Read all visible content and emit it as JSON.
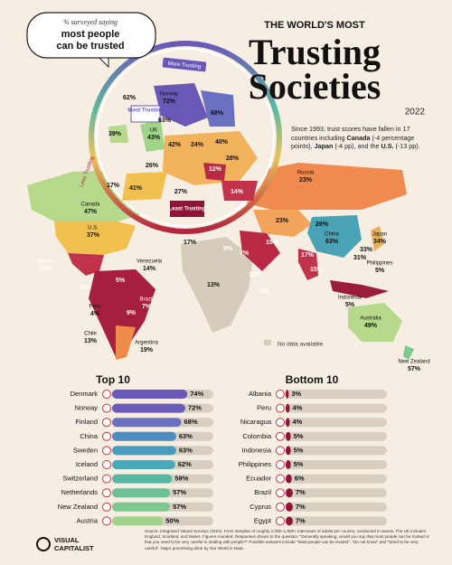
{
  "header": {
    "kicker": "THE WORLD'S MOST",
    "title_line1": "Trusting",
    "title_line2": "Societies",
    "year": "2022"
  },
  "bubble": {
    "line1": "% surveyed saying",
    "line2": "most people",
    "line3": "can be trusted"
  },
  "scale": {
    "more": "More Trusting",
    "less": "Less Trusting",
    "most": "Most Trusting",
    "least": "Least Trusting"
  },
  "note": {
    "parts": [
      "Since 1993, trust scores have fallen in 17 countries including ",
      "Canada",
      " (-4 percentage points), ",
      "Japan",
      " (-4 pp), and the ",
      "U.S.",
      " (-13 pp)."
    ]
  },
  "legend": {
    "no_data": "No data available"
  },
  "map_labels": [
    {
      "name": "Norway",
      "value": "72%"
    },
    {
      "value": "68%"
    },
    {
      "value": "63%"
    },
    {
      "value": "62%"
    },
    {
      "value": "39%"
    },
    {
      "name": "UK",
      "value": "43%"
    },
    {
      "value": "42%"
    },
    {
      "value": "24%"
    },
    {
      "value": "40%"
    },
    {
      "value": "26%"
    },
    {
      "value": "28%"
    },
    {
      "value": "12%"
    },
    {
      "value": "17%"
    },
    {
      "value": "41%"
    },
    {
      "value": "27%"
    },
    {
      "value": "14%"
    },
    {
      "name": "Russia",
      "value": "23%"
    },
    {
      "value": "23%"
    },
    {
      "value": "26%"
    },
    {
      "name": "China",
      "value": "63%"
    },
    {
      "name": "Japan",
      "value": "34%"
    },
    {
      "value": "33%"
    },
    {
      "value": "31%"
    },
    {
      "name": "Canada",
      "value": "47%"
    },
    {
      "name": "U.S.",
      "value": "37%"
    },
    {
      "name": "Mexico",
      "value": "10%"
    },
    {
      "name": "Venezuela",
      "value": "14%"
    },
    {
      "value": "6%"
    },
    {
      "value": "5%"
    },
    {
      "name": "Peru",
      "value": "4%"
    },
    {
      "name": "Brazil",
      "value": "7%"
    },
    {
      "value": "9%"
    },
    {
      "name": "Chile",
      "value": "13%"
    },
    {
      "name": "Argentina",
      "value": "19%"
    },
    {
      "value": "17%"
    },
    {
      "value": "9%"
    },
    {
      "value": "7%"
    },
    {
      "value": "15%"
    },
    {
      "value": "12%"
    },
    {
      "value": "13%"
    },
    {
      "value": "9%"
    },
    {
      "value": "17%"
    },
    {
      "value": "15%"
    },
    {
      "name": "Philippines",
      "value": "5%"
    },
    {
      "name": "Indonesia",
      "value": "5%"
    },
    {
      "name": "Australia",
      "value": "49%"
    },
    {
      "name": "New Zealand",
      "value": "57%"
    }
  ],
  "chart_data": [
    {
      "type": "bar",
      "orientation": "horizontal",
      "title": "Top 10",
      "categories": [
        "Denmark",
        "Norway",
        "Finland",
        "China",
        "Sweden",
        "Iceland",
        "Switzerland",
        "Netherlands",
        "New Zealand",
        "Austria"
      ],
      "values": [
        74,
        72,
        68,
        63,
        63,
        62,
        59,
        57,
        57,
        50
      ],
      "value_labels": [
        "74%",
        "72%",
        "68%",
        "63%",
        "63%",
        "62%",
        "59%",
        "57%",
        "57%",
        "50%"
      ],
      "colors": [
        "#6a58b6",
        "#6a5cb9",
        "#6a6fc0",
        "#4c8cc0",
        "#4a9cbe",
        "#4aa9b8",
        "#58b7a2",
        "#6bc197",
        "#7ec890",
        "#9fd48a"
      ],
      "xlim": [
        0,
        80
      ]
    },
    {
      "type": "bar",
      "orientation": "horizontal",
      "title": "Bottom 10",
      "categories": [
        "Albania",
        "Peru",
        "Nicaragua",
        "Colombia",
        "Indonesia",
        "Philippines",
        "Ecuador",
        "Brazil",
        "Cyprus",
        "Egypt"
      ],
      "values": [
        3,
        4,
        4,
        5,
        5,
        5,
        6,
        7,
        7,
        7
      ],
      "value_labels": [
        "3%",
        "4%",
        "4%",
        "5%",
        "5%",
        "5%",
        "6%",
        "7%",
        "7%",
        "7%"
      ],
      "colors": [
        "#8e1538",
        "#8e1538",
        "#8e1538",
        "#8e1538",
        "#8e1538",
        "#8e1538",
        "#8e1538",
        "#8e1538",
        "#8e1538",
        "#8e1538"
      ],
      "xlim": [
        0,
        80
      ]
    }
  ],
  "source": "Source: Integrated Values Surveys (2024). From samples of roughly 1,000–1,500+ interviews of adults per country, conducted in waves. The UK includes England, Scotland, and Wales. Figures rounded. Responses shown to the question: \"Generally speaking, would you say that most people can be trusted or that you need to be very careful in dealing with people?\" Possible answers include \"Most people can be trusted\", \"Do not know\" and \"Need to be very careful\". Major processing done by Our World in Data.",
  "brand": {
    "line1": "VISUAL",
    "line2": "CAPITALIST"
  }
}
